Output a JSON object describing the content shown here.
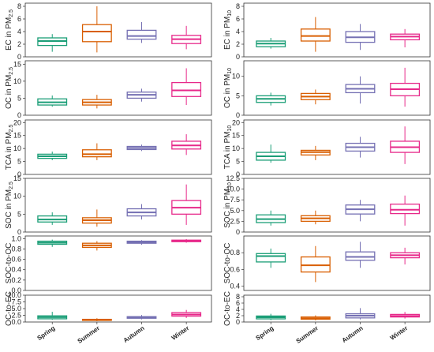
{
  "categories": [
    "Spring",
    "Summer",
    "Autumn",
    "Winter"
  ],
  "colors": {
    "Spring": "#1b9e77",
    "Summer": "#d95f02",
    "Autumn": "#7570b3",
    "Winter": "#e7298a"
  },
  "chart_data": [
    {
      "type": "box",
      "ylabel": {
        "main": "EC in PM",
        "sub": "2.5"
      },
      "ylim": [
        0,
        8.5
      ],
      "yticks": [
        "0",
        "2",
        "4",
        "6",
        "8"
      ],
      "tickvals": [
        0,
        2,
        4,
        6,
        8
      ],
      "boxes": [
        {
          "min": 0.8,
          "q1": 1.8,
          "median": 2.5,
          "q3": 3.0,
          "max": 3.6
        },
        {
          "min": 0.7,
          "q1": 2.4,
          "median": 4.0,
          "q3": 5.1,
          "max": 8.0
        },
        {
          "min": 2.2,
          "q1": 2.8,
          "median": 3.3,
          "q3": 4.2,
          "max": 5.5
        },
        {
          "min": 1.2,
          "q1": 2.1,
          "median": 2.8,
          "q3": 3.4,
          "max": 4.9
        }
      ]
    },
    {
      "type": "box",
      "ylabel": {
        "main": "EC in PM",
        "sub": "10"
      },
      "ylim": [
        0,
        8.5
      ],
      "yticks": [
        "0",
        "2",
        "4",
        "6",
        "8"
      ],
      "tickvals": [
        0,
        2,
        4,
        6,
        8
      ],
      "boxes": [
        {
          "min": 1.3,
          "q1": 1.6,
          "median": 2.1,
          "q3": 2.5,
          "max": 3.0
        },
        {
          "min": 0.8,
          "q1": 2.5,
          "median": 3.3,
          "q3": 4.4,
          "max": 6.3
        },
        {
          "min": 1.1,
          "q1": 2.3,
          "median": 3.1,
          "q3": 4.0,
          "max": 5.2
        },
        {
          "min": 1.5,
          "q1": 2.7,
          "median": 3.2,
          "q3": 3.6,
          "max": 4.4
        }
      ]
    },
    {
      "type": "box",
      "ylabel": {
        "main": "OC in PM",
        "sub": "2.5"
      },
      "ylim": [
        0,
        16
      ],
      "yticks": [
        "0",
        "5",
        "10",
        "15"
      ],
      "tickvals": [
        0,
        5,
        10,
        15
      ],
      "boxes": [
        {
          "min": 2.5,
          "q1": 3.0,
          "median": 3.8,
          "q3": 4.8,
          "max": 5.8
        },
        {
          "min": 2.0,
          "q1": 3.0,
          "median": 3.8,
          "q3": 4.6,
          "max": 6.0
        },
        {
          "min": 4.0,
          "q1": 5.0,
          "median": 6.0,
          "q3": 6.8,
          "max": 7.8
        },
        {
          "min": 3.0,
          "q1": 5.5,
          "median": 7.3,
          "q3": 9.6,
          "max": 13.8
        }
      ]
    },
    {
      "type": "box",
      "ylabel": {
        "main": "OC in PM",
        "sub": "10"
      },
      "ylim": [
        0,
        14
      ],
      "yticks": [
        "0",
        "5",
        "10"
      ],
      "tickvals": [
        0,
        5,
        10
      ],
      "boxes": [
        {
          "min": 2.5,
          "q1": 3.3,
          "median": 4.2,
          "q3": 5.0,
          "max": 5.8
        },
        {
          "min": 2.8,
          "q1": 4.0,
          "median": 4.8,
          "q3": 5.6,
          "max": 6.6
        },
        {
          "min": 3.0,
          "q1": 5.8,
          "median": 6.8,
          "q3": 7.9,
          "max": 10.0
        },
        {
          "min": 2.2,
          "q1": 5.0,
          "median": 6.7,
          "q3": 8.2,
          "max": 12.2
        }
      ]
    },
    {
      "type": "box",
      "ylabel": {
        "main": "TCA in PM",
        "sub": "2.5"
      },
      "ylim": [
        0,
        21
      ],
      "yticks": [
        "0",
        "5",
        "10",
        "15",
        "20"
      ],
      "tickvals": [
        0,
        5,
        10,
        15,
        20
      ],
      "boxes": [
        {
          "min": 5.5,
          "q1": 6.2,
          "median": 7.0,
          "q3": 7.8,
          "max": 8.8
        },
        {
          "min": 5.5,
          "q1": 6.8,
          "median": 7.8,
          "q3": 9.5,
          "max": 12.0
        },
        {
          "min": 9.0,
          "q1": 9.6,
          "median": 10.2,
          "q3": 10.8,
          "max": 11.5
        },
        {
          "min": 7.5,
          "q1": 9.8,
          "median": 11.2,
          "q3": 12.8,
          "max": 15.5
        }
      ]
    },
    {
      "type": "box",
      "ylabel": {
        "main": "TCA in PM",
        "sub": "10"
      },
      "ylim": [
        0,
        21
      ],
      "yticks": [
        "0",
        "5",
        "10",
        "15",
        "20"
      ],
      "tickvals": [
        0,
        5,
        10,
        15,
        20
      ],
      "boxes": [
        {
          "min": 4.5,
          "q1": 5.5,
          "median": 7.0,
          "q3": 8.5,
          "max": 11.5
        },
        {
          "min": 5.5,
          "q1": 7.5,
          "median": 8.6,
          "q3": 9.3,
          "max": 11.0
        },
        {
          "min": 6.5,
          "q1": 9.0,
          "median": 10.5,
          "q3": 12.0,
          "max": 14.5
        },
        {
          "min": 4.0,
          "q1": 8.5,
          "median": 10.5,
          "q3": 12.8,
          "max": 18.5
        }
      ]
    },
    {
      "type": "box",
      "ylabel": {
        "main": "SOC in PM",
        "sub": "2.5"
      },
      "ylim": [
        0,
        15
      ],
      "yticks": [
        "0",
        "5",
        "10",
        "15"
      ],
      "tickvals": [
        0,
        5,
        10,
        15
      ],
      "boxes": [
        {
          "min": 2.0,
          "q1": 2.8,
          "median": 3.5,
          "q3": 4.5,
          "max": 5.5
        },
        {
          "min": 1.5,
          "q1": 2.5,
          "median": 3.3,
          "q3": 4.0,
          "max": 6.3
        },
        {
          "min": 3.5,
          "q1": 4.5,
          "median": 5.5,
          "q3": 6.5,
          "max": 7.8
        },
        {
          "min": 2.0,
          "q1": 5.0,
          "median": 6.8,
          "q3": 8.8,
          "max": 13.3
        }
      ]
    },
    {
      "type": "box",
      "ylabel": {
        "main": "SOC in PM",
        "sub": "10"
      },
      "ylim": [
        0,
        12.5
      ],
      "yticks": [
        "0",
        "2.5",
        "5.0",
        "7.5",
        "10.0",
        "12.5"
      ],
      "tickvals": [
        0,
        2.5,
        5,
        7.5,
        10,
        12.5
      ],
      "boxes": [
        {
          "min": 1.5,
          "q1": 2.2,
          "median": 3.0,
          "q3": 4.0,
          "max": 5.0
        },
        {
          "min": 1.8,
          "q1": 2.5,
          "median": 3.2,
          "q3": 3.8,
          "max": 5.0
        },
        {
          "min": 2.5,
          "q1": 4.2,
          "median": 5.3,
          "q3": 6.3,
          "max": 7.5
        },
        {
          "min": 1.5,
          "q1": 4.3,
          "median": 5.2,
          "q3": 6.5,
          "max": 8.5
        }
      ]
    },
    {
      "type": "box",
      "ylabel": {
        "main": "SOC-to-OC"
      },
      "ylim": [
        0,
        1.05
      ],
      "yticks": [
        "0.0",
        "0.2",
        "0.4",
        "0.6",
        "0.8",
        "1.0"
      ],
      "tickvals": [
        0,
        0.2,
        0.4,
        0.6,
        0.8,
        1.0
      ],
      "boxes": [
        {
          "min": 0.84,
          "q1": 0.89,
          "median": 0.92,
          "q3": 0.95,
          "max": 0.98
        },
        {
          "min": 0.77,
          "q1": 0.83,
          "median": 0.87,
          "q3": 0.91,
          "max": 0.95
        },
        {
          "min": 0.88,
          "q1": 0.91,
          "median": 0.93,
          "q3": 0.95,
          "max": 0.97
        },
        {
          "min": 0.92,
          "q1": 0.94,
          "median": 0.955,
          "q3": 0.97,
          "max": 0.99
        }
      ]
    },
    {
      "type": "box",
      "ylabel": {
        "main": "SOC-to-OC"
      },
      "ylim": [
        0.35,
        1.0
      ],
      "yticks": [
        "0.4",
        "0.6",
        "0.8"
      ],
      "tickvals": [
        0.4,
        0.6,
        0.8
      ],
      "boxes": [
        {
          "min": 0.62,
          "q1": 0.69,
          "median": 0.76,
          "q3": 0.79,
          "max": 0.85
        },
        {
          "min": 0.45,
          "q1": 0.57,
          "median": 0.65,
          "q3": 0.75,
          "max": 0.88
        },
        {
          "min": 0.62,
          "q1": 0.71,
          "median": 0.75,
          "q3": 0.81,
          "max": 0.93
        },
        {
          "min": 0.66,
          "q1": 0.74,
          "median": 0.77,
          "q3": 0.8,
          "max": 0.86
        }
      ]
    },
    {
      "type": "box",
      "ylabel": {
        "main": "OC-to-EC"
      },
      "ylim": [
        0,
        10
      ],
      "yticks": [
        "0.0",
        "2.5",
        "5.0",
        "7.5",
        "10.0"
      ],
      "tickvals": [
        0,
        2.5,
        5,
        7.5,
        10
      ],
      "boxes": [
        {
          "min": 0.8,
          "q1": 1.2,
          "median": 1.8,
          "q3": 2.3,
          "max": 3.8
        },
        {
          "min": 0.3,
          "q1": 0.6,
          "median": 0.8,
          "q3": 1.0,
          "max": 1.4
        },
        {
          "min": 1.0,
          "q1": 1.4,
          "median": 1.7,
          "q3": 2.0,
          "max": 2.6
        },
        {
          "min": 1.5,
          "q1": 2.2,
          "median": 2.8,
          "q3": 3.5,
          "max": 4.5
        }
      ]
    },
    {
      "type": "box",
      "ylabel": {
        "main": "OC-to-EC"
      },
      "ylim": [
        0,
        8.5
      ],
      "yticks": [
        "0",
        "2",
        "4",
        "6",
        "8"
      ],
      "tickvals": [
        0,
        2,
        4,
        6,
        8
      ],
      "boxes": [
        {
          "min": 0.6,
          "q1": 1.0,
          "median": 1.5,
          "q3": 1.9,
          "max": 2.6
        },
        {
          "min": 0.5,
          "q1": 0.9,
          "median": 1.2,
          "q3": 1.6,
          "max": 2.1
        },
        {
          "min": 0.8,
          "q1": 1.3,
          "median": 2.0,
          "q3": 2.6,
          "max": 4.4
        },
        {
          "min": 1.1,
          "q1": 1.6,
          "median": 1.9,
          "q3": 2.4,
          "max": 3.2
        }
      ]
    }
  ]
}
